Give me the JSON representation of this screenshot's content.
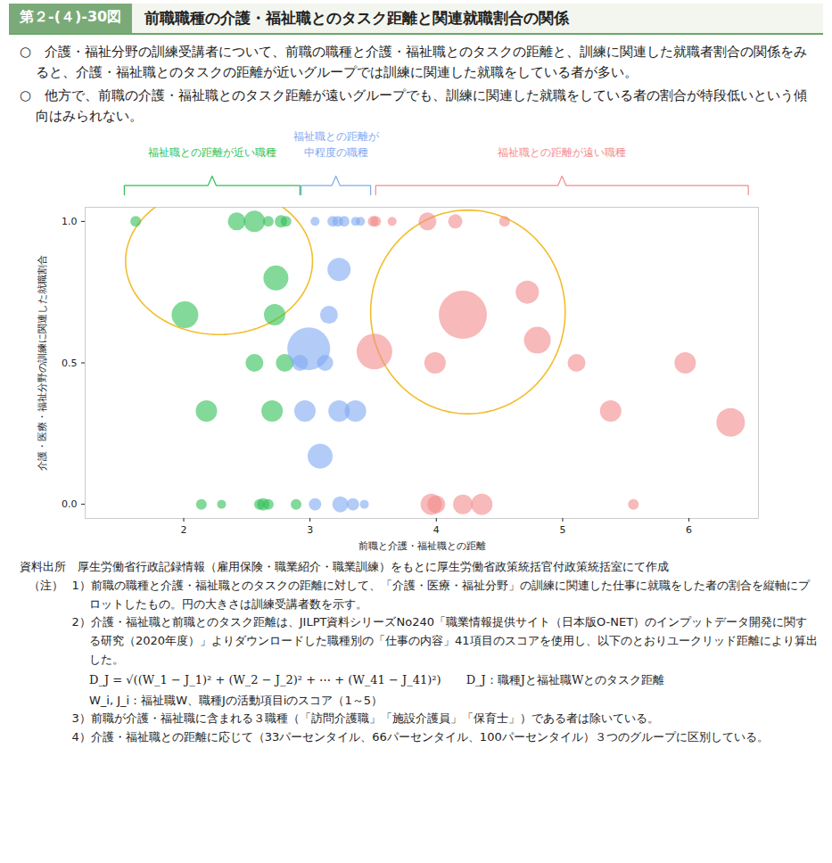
{
  "chart_data": {
    "type": "scatter",
    "figure_number": "第２-(４)-30図",
    "title": "前職職種の介護・福祉職とのタスク距離と関連就職割合の関係",
    "subtitle": [
      "○　介護・福祉分野の訓練受講者について、前職の職種と介護・福祉職とのタスクの距離と、訓練に関連した就職者割合の関係をみると、介護・福祉職とのタスクの距離が近いグループでは訓練に関連した就職をしている者が多い。",
      "○　他方で、前職の介護・福祉職とのタスク距離が遠いグループでも、訓練に関連した就職をしている者の割合が特段低いという傾向はみられない。"
    ],
    "x_label": "前職と介護・福祉職との距離",
    "y_label": "介護・医療・福祉分野の訓練に関連した就職割合",
    "xlim": [
      1.22,
      6.55
    ],
    "xticks": [
      2,
      3,
      4,
      5,
      6
    ],
    "ylim": [
      -0.05,
      1.05
    ],
    "yticks": [
      {
        "value": 0,
        "label": "0.0"
      },
      {
        "value": 0.5,
        "label": "0.5"
      },
      {
        "value": 1,
        "label": "1.0"
      }
    ],
    "grid": false,
    "series": [
      {
        "name": "福祉職との距離が近い職種",
        "color": "#2fbf55",
        "range": [
          1.53,
          2.92
        ],
        "x": [
          1.62,
          2.42,
          2.56,
          2.67,
          2.77,
          2.81,
          2.73,
          2.01,
          2.72,
          2.56,
          2.8,
          2.18,
          2.7,
          2.14,
          2.3,
          2.6,
          2.63,
          2.67,
          2.89
        ],
        "values": [
          1,
          1,
          1,
          1,
          1,
          1,
          0.8,
          0.67,
          0.67,
          0.5,
          0.5,
          0.33,
          0.33,
          0,
          0,
          0,
          0,
          0,
          0
        ],
        "size": [
          36,
          100,
          144,
          36,
          49,
          36,
          196,
          225,
          144,
          100,
          100,
          144,
          144,
          36,
          25,
          36,
          49,
          36,
          36
        ]
      },
      {
        "name": "福祉職との距離が\n中程度の職種",
        "color": "#7fa8f2",
        "range": [
          2.93,
          3.48
        ],
        "x": [
          3.04,
          3.18,
          3.22,
          3.27,
          3.36,
          3.4,
          3.23,
          3.15,
          2.99,
          2.92,
          3.12,
          2.96,
          3.23,
          3.36,
          3.08,
          3.04,
          3.24,
          3.34,
          3.43
        ],
        "values": [
          1,
          1,
          1,
          1,
          1,
          1,
          0.83,
          0.67,
          0.55,
          0.5,
          0.5,
          0.33,
          0.33,
          0.33,
          0.17,
          0,
          0,
          0,
          0
        ],
        "size": [
          25,
          36,
          36,
          36,
          25,
          25,
          169,
          100,
          576,
          81,
          81,
          144,
          144,
          144,
          196,
          49,
          81,
          49,
          25
        ]
      },
      {
        "name": "福祉職との距離が遠い職種",
        "color": "#f28b8b",
        "range": [
          3.52,
          6.47
        ],
        "x": [
          3.5,
          3.52,
          3.65,
          3.93,
          4.15,
          4.54,
          4.72,
          4.21,
          4.8,
          3.51,
          3.99,
          5.11,
          5.97,
          5.38,
          6.33,
          3.96,
          4.0,
          4.21,
          4.36,
          5.56
        ],
        "values": [
          1,
          1,
          1,
          1,
          1,
          1,
          0.75,
          0.67,
          0.58,
          0.54,
          0.5,
          0.5,
          0.5,
          0.33,
          0.29,
          0,
          0,
          0,
          0,
          0
        ],
        "size": [
          36,
          36,
          25,
          100,
          64,
          36,
          169,
          729,
          225,
          400,
          144,
          100,
          144,
          144,
          256,
          144,
          100,
          121,
          144,
          36
        ]
      }
    ],
    "highlights": [
      {
        "cx": 2.28,
        "cy": 0.86,
        "rx": 0.74,
        "ry": 0.26,
        "color": "#f2bd2c"
      },
      {
        "cx": 4.25,
        "cy": 0.68,
        "rx": 0.77,
        "ry": 0.36,
        "color": "#f2bd2c"
      }
    ],
    "source": "資料出所　厚生労働省行政記録情報（雇用保険・職業紹介・職業訓練）をもとに厚生労働省政策統括官付政策統括室にて作成",
    "notes": {
      "label": "（注）",
      "items": [
        "1）前職の職種と介護・福祉職とのタスクの距離に対して、「介護・医療・福祉分野」の訓練に関連した仕事に就職をした者の割合を縦軸にプロットしたもの。円の大きさは訓練受講者数を示す。",
        "2）介護・福祉職と前職とのタスク距離は、JILPT資料シリーズNo240「職業情報提供サイト（日本版O-NET）のインプットデータ開発に関する研究（2020年度）」よりダウンロードした職種別の「仕事の内容」41項目のスコアを使用し、以下のとおりユークリッド距離により算出した。",
        "3）前職が介護・福祉職に含まれる３職種（「訪問介護職」「施設介護員」「保育士」）である者は除いている。",
        "4）介護・福祉職との距離に応じて（33パーセンタイル、66パーセンタイル、100パーセンタイル）３つのグループに区別している。"
      ],
      "formula": {
        "expression": "D_J = √((W_1 − J_1)² + (W_2 − J_2)² + ⋯ + (W_41 − J_41)²)",
        "definitions": [
          "D_J：職種Jと福祉職Wとのタスク距離",
          "W_i, J_i：福祉職W、職種Jの活動項目iのスコア（1～5）"
        ]
      }
    }
  }
}
